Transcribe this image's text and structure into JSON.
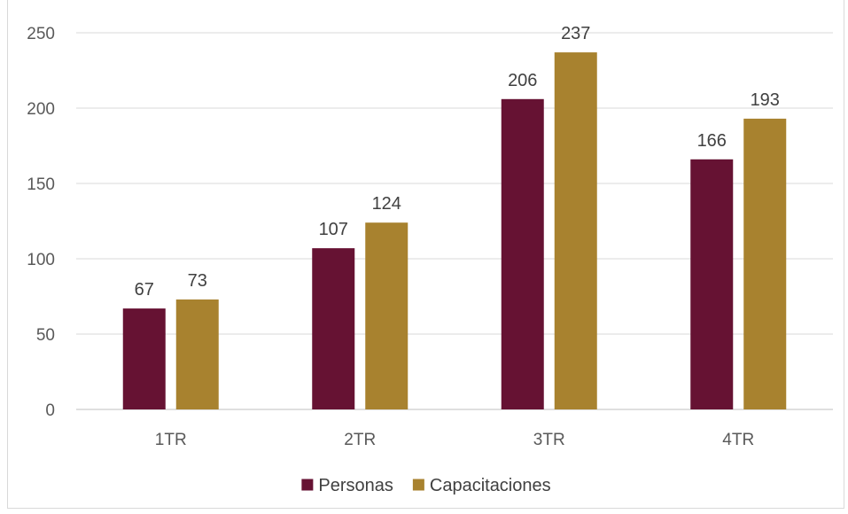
{
  "chart_data": {
    "type": "bar",
    "title": "",
    "categories": [
      "1TR",
      "2TR",
      "3TR",
      "4TR"
    ],
    "series": [
      {
        "name": "Personas",
        "values": [
          67,
          107,
          206,
          166
        ],
        "color": "#661233"
      },
      {
        "name": "Capacitaciones",
        "values": [
          73,
          124,
          237,
          193
        ],
        "color": "#a8822f"
      }
    ],
    "yticks": [
      "0",
      "50",
      "100",
      "150",
      "200",
      "250"
    ],
    "ylim": [
      0,
      250
    ],
    "xlabel": "",
    "ylabel": "",
    "grid": true,
    "legend_position": "bottom",
    "data_labels": true
  }
}
